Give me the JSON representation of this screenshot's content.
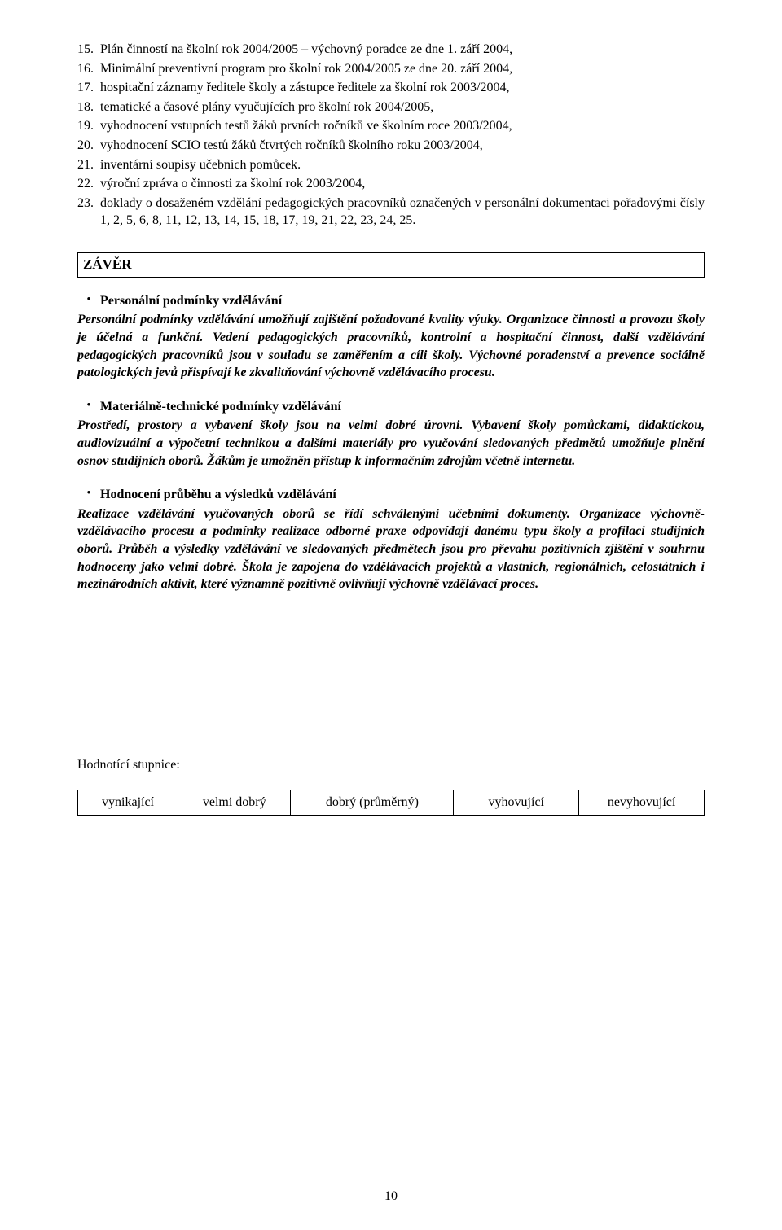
{
  "font": {
    "family": "Times New Roman",
    "body_size_pt": 12,
    "heading_size_pt": 12
  },
  "colors": {
    "text": "#000000",
    "background": "#ffffff",
    "border": "#000000"
  },
  "list": {
    "items": [
      {
        "n": "15.",
        "text": "Plán činností na školní rok 2004/2005 – výchovný poradce ze dne 1. září 2004,"
      },
      {
        "n": "16.",
        "text": "Minimální preventivní program pro školní rok 2004/2005 ze dne 20. září 2004,"
      },
      {
        "n": "17.",
        "text": "hospitační záznamy ředitele školy a zástupce ředitele za školní rok 2003/2004,"
      },
      {
        "n": "18.",
        "text": "tematické a časové plány vyučujících pro školní rok 2004/2005,"
      },
      {
        "n": "19.",
        "text": "vyhodnocení vstupních testů žáků prvních ročníků ve školním roce 2003/2004,"
      },
      {
        "n": "20.",
        "text": "vyhodnocení SCIO testů žáků čtvrtých ročníků školního roku 2003/2004,"
      },
      {
        "n": "21.",
        "text": "inventární soupisy učebních pomůcek."
      },
      {
        "n": "22.",
        "text": "výroční zpráva o činnosti za školní rok 2003/2004,"
      },
      {
        "n": "23.",
        "text": "doklady o dosaženém vzdělání pedagogických pracovníků označených v personální dokumentaci pořadovými čísly 1, 2, 5, 6, 8, 11, 12, 13, 14, 15, 18, 17, 19, 21, 22, 23, 24, 25."
      }
    ]
  },
  "zaver": {
    "title": "ZÁVĚR",
    "bullet_char": "•",
    "sections": [
      {
        "heading": "Personální podmínky vzdělávání",
        "body": "Personální podmínky vzdělávání umožňují zajištění požadované kvality výuky. Organizace činnosti a provozu školy je účelná a funkční. Vedení pedagogických pracovníků, kontrolní a hospitační činnost, další vzdělávání pedagogických pracovníků jsou v souladu se zaměřením a cíli školy. Výchovné poradenství a prevence sociálně patologických jevů přispívají ke zkvalitňování výchovně vzdělávacího procesu."
      },
      {
        "heading": "Materiálně-technické podmínky vzdělávání",
        "body": "Prostředí, prostory a vybavení školy jsou na velmi dobré úrovni. Vybavení školy pomůckami, didaktickou, audiovizuální a výpočetní technikou a dalšími materiály pro vyučování sledovaných předmětů umožňuje plnění osnov studijních oborů. Žákům je umožněn přístup k informačním zdrojům včetně internetu."
      },
      {
        "heading": "Hodnocení průběhu a výsledků vzdělávání",
        "body": "Realizace vzdělávání vyučovaných oborů se řídí schválenými učebními dokumenty. Organizace výchovně-vzdělávacího procesu a podmínky realizace odborné praxe odpovídají danému typu školy a profilaci studijních oborů. Průběh a výsledky vzdělávání ve sledovaných předmětech jsou pro převahu pozitivních zjištění v souhrnu hodnoceny jako velmi dobré. Škola je zapojena do vzdělávacích projektů a vlastních, regionálních, celostátních i mezinárodních aktivit, které významně pozitivně ovlivňují výchovně vzdělávací proces."
      }
    ]
  },
  "rating": {
    "caption": "Hodnotící stupnice:",
    "cells": [
      "vynikající",
      "velmi dobrý",
      "dobrý (průměrný)",
      "vyhovující",
      "nevyhovující"
    ],
    "col_widths_pct": [
      16,
      18,
      26,
      20,
      20
    ]
  },
  "page_number": "10"
}
